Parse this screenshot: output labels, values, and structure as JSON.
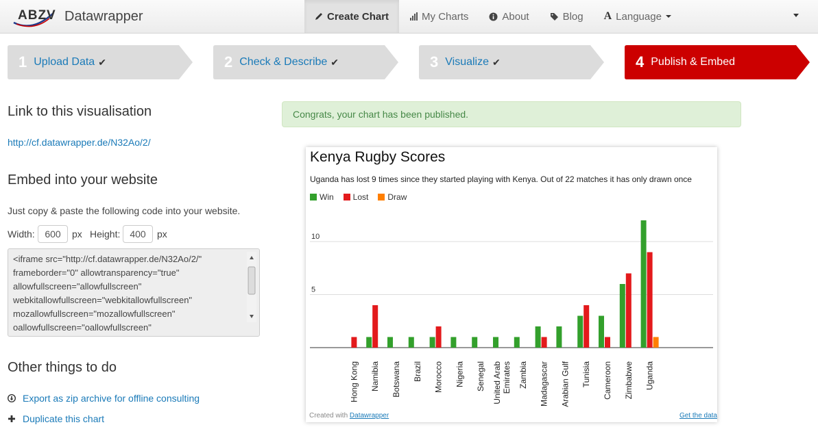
{
  "nav": {
    "brand_logo": "ABZV",
    "brand_name": "Datawrapper",
    "items": [
      {
        "label": "Create Chart",
        "icon": "pencil-icon",
        "active": true
      },
      {
        "label": "My Charts",
        "icon": "bar-chart-icon"
      },
      {
        "label": "About",
        "icon": "info-icon"
      },
      {
        "label": "Blog",
        "icon": "tag-icon"
      },
      {
        "label": "Language",
        "icon": "font-icon"
      }
    ]
  },
  "steps": [
    {
      "num": "1",
      "label": "Upload Data",
      "done": true
    },
    {
      "num": "2",
      "label": "Check & Describe",
      "done": true
    },
    {
      "num": "3",
      "label": "Visualize",
      "done": true
    },
    {
      "num": "4",
      "label": "Publish & Embed",
      "active": true
    }
  ],
  "left": {
    "link_heading": "Link to this visualisation",
    "link_url": "http://cf.datawrapper.de/N32Ao/2/",
    "embed_heading": "Embed into your website",
    "embed_text": "Just copy & paste the following code into your website.",
    "width_label": "Width:",
    "width_value": "600",
    "height_label": "Height:",
    "height_value": "400",
    "unit": "px",
    "embed_code": "<iframe src=\"http://cf.datawrapper.de/N32Ao/2/\"\nframeborder=\"0\" allowtransparency=\"true\"\nallowfullscreen=\"allowfullscreen\"\nwebkitallowfullscreen=\"webkitallowfullscreen\"\nmozallowfullscreen=\"mozallowfullscreen\"\noallowfullscreen=\"oallowfullscreen\"",
    "other_heading": "Other things to do",
    "export_label": "Export as zip archive for offline consulting",
    "duplicate_label": "Duplicate this chart"
  },
  "alert": "Congrats, your chart has been published.",
  "chart_card": {
    "footer_prefix": "Created with ",
    "footer_link": "Datawrapper",
    "get_data": "Get the data"
  },
  "colors": {
    "win": "#33a02c",
    "lost": "#e31a1c",
    "draw": "#ff7f00",
    "accent": "#cc0000",
    "link": "#1a7ab8"
  },
  "chart_data": {
    "type": "bar",
    "title": "Kenya Rugby Scores",
    "subtitle": "Uganda has lost 9 times since they started playing with Kenya. Out of 22 matches it has only drawn once",
    "categories": [
      "Hong Kong",
      "Namibia",
      "Botswana",
      "Brazil",
      "Morocco",
      "Nigeria",
      "Senegal",
      "United Arab Emirates",
      "Zambia",
      "Madagascar",
      "Arabian Gulf",
      "Tunisia",
      "Cameroon",
      "Zimbabwe",
      "Uganda"
    ],
    "category_lines": [
      [
        "Hong Kong"
      ],
      [
        "Namibia"
      ],
      [
        "Botswana"
      ],
      [
        "Brazil"
      ],
      [
        "Morocco"
      ],
      [
        "Nigeria"
      ],
      [
        "Senegal"
      ],
      [
        "United Arab",
        "Emirates"
      ],
      [
        "Zambia"
      ],
      [
        "Madagascar"
      ],
      [
        "Arabian Gulf"
      ],
      [
        "Tunisia"
      ],
      [
        "Cameroon"
      ],
      [
        "Zimbabwe"
      ],
      [
        "Uganda"
      ]
    ],
    "series": [
      {
        "name": "Win",
        "values": [
          0,
          1,
          1,
          1,
          1,
          1,
          1,
          1,
          1,
          2,
          2,
          3,
          3,
          6,
          12
        ]
      },
      {
        "name": "Lost",
        "values": [
          1,
          4,
          0,
          0,
          2,
          0,
          0,
          0,
          0,
          1,
          0,
          4,
          1,
          7,
          9
        ]
      },
      {
        "name": "Draw",
        "values": [
          0,
          0,
          0,
          0,
          0,
          0,
          0,
          0,
          0,
          0,
          0,
          0,
          0,
          0,
          1
        ]
      }
    ],
    "yticks": [
      5,
      10
    ],
    "ylim": [
      0,
      12
    ],
    "grid": true,
    "legend": "top-left"
  }
}
